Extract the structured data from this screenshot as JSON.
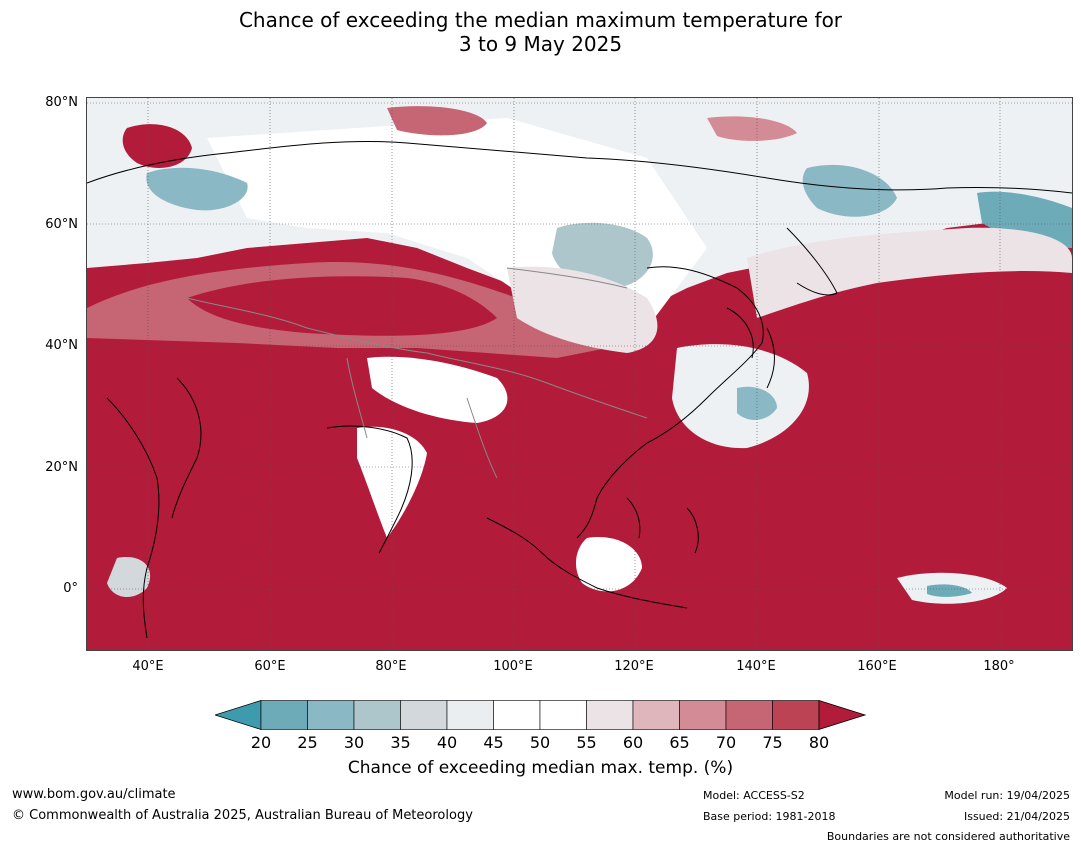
{
  "title": {
    "line1": "Chance of exceeding the median maximum temperature for",
    "line2": "3 to 9 May 2025"
  },
  "map": {
    "lat_labels": [
      "80°N",
      "60°N",
      "40°N",
      "20°N",
      "0°"
    ],
    "lon_labels": [
      "40°E",
      "60°E",
      "80°E",
      "100°E",
      "120°E",
      "140°E",
      "160°E",
      "180°"
    ],
    "colors": {
      "ocean_hot": "#b31b3a",
      "land_outline": "#000000",
      "border": "#888888"
    }
  },
  "colorbar": {
    "ticks": [
      "20",
      "25",
      "30",
      "35",
      "40",
      "45",
      "50",
      "55",
      "60",
      "65",
      "70",
      "75",
      "80"
    ],
    "colors": [
      "#3d9bad",
      "#6eabb8",
      "#8ab9c5",
      "#adc6cc",
      "#d2d8db",
      "#eaeef0",
      "#ffffff",
      "#ffffff",
      "#ebe3e5",
      "#dfb6bc",
      "#d38c95",
      "#c66573",
      "#bc4353",
      "#b31b3a"
    ],
    "label": "Chance of exceeding median max. temp. (%)"
  },
  "footer": {
    "website": "www.bom.gov.au/climate",
    "copyright": "© Commonwealth of Australia 2025, Australian Bureau of Meteorology",
    "model": "Model: ACCESS-S2",
    "base_period": "Base period: 1981-2018",
    "model_run": "Model run: 19/04/2025",
    "issued": "Issued: 21/04/2025",
    "disclaimer": "Boundaries are not considered authoritative"
  }
}
